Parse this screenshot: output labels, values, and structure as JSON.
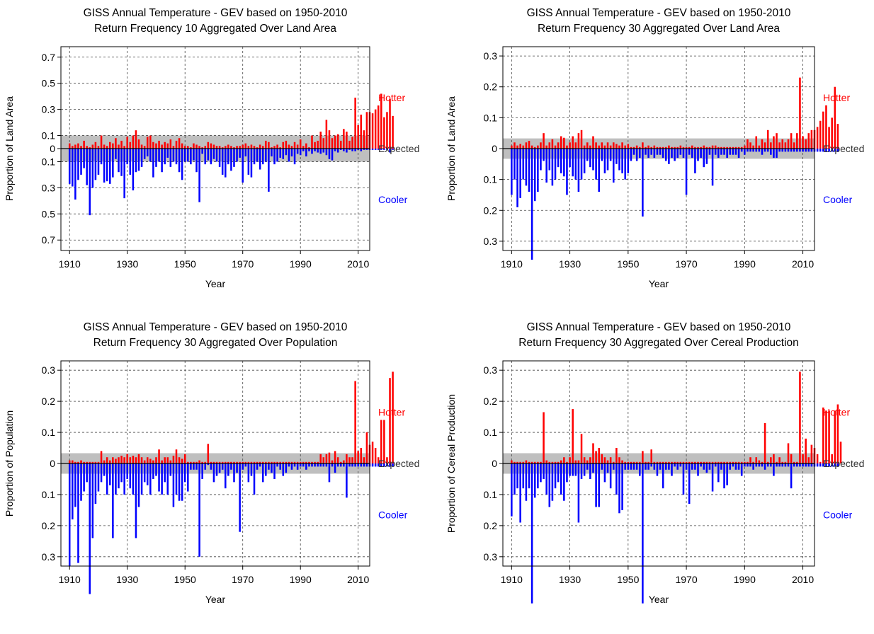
{
  "figure": {
    "colors": {
      "hotter": "#ff0000",
      "cooler": "#0000ff",
      "band": "#bfbfbf",
      "axis": "#000000",
      "grid": "#444444"
    }
  },
  "chart_data": [
    {
      "type": "bar",
      "title": "GISS Annual Temperature - GEV based on 1950-2010",
      "subtitle": "Return Frequency 10 Aggregated Over  Land Area",
      "xlabel": "Year",
      "ylabel": "Proportion of Land Area",
      "xlim": [
        1907,
        2014
      ],
      "ylim": [
        -0.78,
        0.78
      ],
      "x_ticks": [
        1910,
        1930,
        1950,
        1970,
        1990,
        2010
      ],
      "y_ticks": [
        0.7,
        0.5,
        0.3,
        0.1,
        0,
        -0.1,
        -0.3,
        -0.5,
        -0.7
      ],
      "y_tick_labels": [
        "0.7",
        "0.5",
        "0.3",
        "0.1",
        "0",
        "0.1",
        "0.3",
        "0.5",
        "0.7"
      ],
      "expected_band": 0.1,
      "labels": {
        "hotter": "Hotter",
        "expected": "Expected",
        "cooler": "Cooler"
      },
      "years_start": 1910,
      "hotter": [
        0.04,
        0.02,
        0.03,
        0.04,
        0.02,
        0.06,
        0.02,
        0.01,
        0.03,
        0.05,
        0.02,
        0.1,
        0.03,
        0.02,
        0.05,
        0.04,
        0.08,
        0.03,
        0.06,
        0.02,
        0.09,
        0.05,
        0.1,
        0.14,
        0.07,
        0.03,
        0.02,
        0.09,
        0.1,
        0.05,
        0.04,
        0.06,
        0.03,
        0.05,
        0.04,
        0.07,
        0.02,
        0.06,
        0.08,
        0.04,
        0.02,
        0.02,
        0.01,
        0.04,
        0.03,
        0.02,
        0.01,
        0.02,
        0.05,
        0.04,
        0.03,
        0.02,
        0.02,
        0.01,
        0.02,
        0.03,
        0.02,
        0.01,
        0.02,
        0.02,
        0.03,
        0.04,
        0.02,
        0.03,
        0.02,
        0.01,
        0.03,
        0.02,
        0.06,
        0.05,
        0.01,
        0.02,
        0.03,
        0.01,
        0.05,
        0.06,
        0.03,
        0.02,
        0.05,
        0.03,
        0.07,
        0.02,
        0.04,
        0.01,
        0.1,
        0.05,
        0.06,
        0.13,
        0.08,
        0.22,
        0.14,
        0.08,
        0.1,
        0.11,
        0.06,
        0.15,
        0.13,
        0.06,
        0.09,
        0.39,
        0.18,
        0.26,
        0.14,
        0.28,
        0.28,
        0.27,
        0.3,
        0.33,
        0.42,
        0.24,
        0.28,
        0.38,
        0.25
      ],
      "cooler": [
        0.27,
        0.29,
        0.39,
        0.24,
        0.2,
        0.15,
        0.28,
        0.51,
        0.3,
        0.24,
        0.2,
        0.12,
        0.26,
        0.25,
        0.27,
        0.22,
        0.08,
        0.18,
        0.21,
        0.38,
        0.12,
        0.2,
        0.32,
        0.18,
        0.17,
        0.14,
        0.08,
        0.06,
        0.1,
        0.22,
        0.14,
        0.1,
        0.18,
        0.12,
        0.07,
        0.14,
        0.1,
        0.12,
        0.18,
        0.24,
        0.1,
        0.1,
        0.12,
        0.09,
        0.18,
        0.41,
        0.04,
        0.12,
        0.09,
        0.12,
        0.08,
        0.1,
        0.14,
        0.2,
        0.22,
        0.12,
        0.17,
        0.14,
        0.1,
        0.07,
        0.26,
        0.06,
        0.2,
        0.22,
        0.12,
        0.1,
        0.16,
        0.12,
        0.1,
        0.33,
        0.06,
        0.12,
        0.1,
        0.07,
        0.08,
        0.05,
        0.1,
        0.06,
        0.12,
        0.04,
        0.05,
        0.02,
        0.06,
        0.02,
        0.04,
        0.02,
        0.03,
        0.04,
        0.03,
        0.05,
        0.08,
        0.09,
        0.02,
        0.03,
        0.01,
        0.02,
        0.03,
        0.01,
        0.02,
        0.02,
        0.01,
        0.02,
        0.01,
        0.01,
        0.01,
        0.01,
        0.01,
        0.01,
        0.01,
        0.01,
        0.01,
        0.03,
        0.01
      ]
    },
    {
      "type": "bar",
      "title": "GISS Annual Temperature - GEV based on 1950-2010",
      "subtitle": "Return Frequency 30 Aggregated Over  Land Area",
      "xlabel": "Year",
      "ylabel": "Proportion of Land Area",
      "xlim": [
        1907,
        2014
      ],
      "ylim": [
        -0.33,
        0.33
      ],
      "x_ticks": [
        1910,
        1930,
        1950,
        1970,
        1990,
        2010
      ],
      "y_ticks": [
        0.3,
        0.2,
        0.1,
        0,
        -0.1,
        -0.2,
        -0.3
      ],
      "y_tick_labels": [
        "0.3",
        "0.2",
        "0.1",
        "0",
        "0.1",
        "0.2",
        "0.3"
      ],
      "expected_band": 0.033,
      "labels": {
        "hotter": "Hotter",
        "expected": "Expected",
        "cooler": "Cooler"
      },
      "years_start": 1910,
      "hotter": [
        0.01,
        0.02,
        0.01,
        0.015,
        0.01,
        0.02,
        0.025,
        0.01,
        0.005,
        0.01,
        0.02,
        0.05,
        0.01,
        0.02,
        0.03,
        0.01,
        0.02,
        0.04,
        0.035,
        0.01,
        0.02,
        0.04,
        0.02,
        0.05,
        0.06,
        0.01,
        0.02,
        0.01,
        0.04,
        0.02,
        0.01,
        0.02,
        0.01,
        0.02,
        0.01,
        0.02,
        0.015,
        0.01,
        0.02,
        0.01,
        0.015,
        0.005,
        0.005,
        0.01,
        0.005,
        0.02,
        0.005,
        0.01,
        0.005,
        0.01,
        0.005,
        0.005,
        0.005,
        0.005,
        0.01,
        0.005,
        0.005,
        0.005,
        0.01,
        0.005,
        0.005,
        0.005,
        0.01,
        0.005,
        0.005,
        0.005,
        0.01,
        0.005,
        0.005,
        0.01,
        0.01,
        0.005,
        0.005,
        0.005,
        0.005,
        0.005,
        0.005,
        0.005,
        0.005,
        0.005,
        0.01,
        0.03,
        0.02,
        0.01,
        0.04,
        0.01,
        0.03,
        0.02,
        0.06,
        0.02,
        0.04,
        0.05,
        0.02,
        0.03,
        0.02,
        0.03,
        0.05,
        0.02,
        0.05,
        0.23,
        0.04,
        0.03,
        0.05,
        0.06,
        0.06,
        0.07,
        0.09,
        0.12,
        0.14,
        0.07,
        0.1,
        0.2,
        0.08
      ],
      "cooler": [
        0.15,
        0.1,
        0.19,
        0.16,
        0.1,
        0.12,
        0.14,
        0.36,
        0.17,
        0.14,
        0.07,
        0.04,
        0.11,
        0.07,
        0.12,
        0.1,
        0.06,
        0.08,
        0.09,
        0.15,
        0.06,
        0.09,
        0.1,
        0.14,
        0.1,
        0.08,
        0.04,
        0.06,
        0.07,
        0.1,
        0.14,
        0.04,
        0.08,
        0.07,
        0.04,
        0.11,
        0.05,
        0.07,
        0.08,
        0.1,
        0.08,
        0.04,
        0.02,
        0.04,
        0.03,
        0.22,
        0.02,
        0.03,
        0.02,
        0.03,
        0.02,
        0.02,
        0.03,
        0.04,
        0.05,
        0.03,
        0.04,
        0.03,
        0.02,
        0.03,
        0.15,
        0.02,
        0.03,
        0.08,
        0.04,
        0.03,
        0.06,
        0.05,
        0.02,
        0.12,
        0.02,
        0.03,
        0.02,
        0.02,
        0.03,
        0.02,
        0.02,
        0.02,
        0.03,
        0.01,
        0.02,
        0.01,
        0.01,
        0.01,
        0.01,
        0.01,
        0.02,
        0.01,
        0.01,
        0.02,
        0.03,
        0.03,
        0.01,
        0.01,
        0.01,
        0.01,
        0.01,
        0.01,
        0.01,
        0.01,
        0.01,
        0.01,
        0.01,
        0.01,
        0.01,
        0.01,
        0.01,
        0.01,
        0.01,
        0.01,
        0.01,
        0.01,
        0.01
      ]
    },
    {
      "type": "bar",
      "title": "GISS Annual Temperature - GEV based on 1950-2010",
      "subtitle": "Return Frequency 30 Aggregated Over  Population",
      "xlabel": "Year",
      "ylabel": "Proportion of Population",
      "xlim": [
        1907,
        2014
      ],
      "ylim": [
        -0.33,
        0.33
      ],
      "x_ticks": [
        1910,
        1930,
        1950,
        1970,
        1990,
        2010
      ],
      "y_ticks": [
        0.3,
        0.2,
        0.1,
        0,
        -0.1,
        -0.2,
        -0.3
      ],
      "y_tick_labels": [
        "0.3",
        "0.2",
        "0.1",
        "0",
        "0.1",
        "0.2",
        "0.3"
      ],
      "expected_band": 0.033,
      "labels": {
        "hotter": "Hotter",
        "expected": "Expected",
        "cooler": "Cooler"
      },
      "years_start": 1910,
      "hotter": [
        0.01,
        0.01,
        0.005,
        0.005,
        0.01,
        0.005,
        0.005,
        0.005,
        0.005,
        0.005,
        0.005,
        0.04,
        0.01,
        0.02,
        0.01,
        0.02,
        0.015,
        0.02,
        0.025,
        0.02,
        0.03,
        0.02,
        0.025,
        0.02,
        0.03,
        0.02,
        0.01,
        0.02,
        0.015,
        0.01,
        0.02,
        0.045,
        0.01,
        0.02,
        0.02,
        0.01,
        0.025,
        0.045,
        0.02,
        0.015,
        0.03,
        0.005,
        0.005,
        0.005,
        0.005,
        0.01,
        0.005,
        0.005,
        0.063,
        0.005,
        0.005,
        0.005,
        0.005,
        0.005,
        0.005,
        0.005,
        0.005,
        0.005,
        0.005,
        0.005,
        0.005,
        0.005,
        0.005,
        0.005,
        0.005,
        0.005,
        0.005,
        0.005,
        0.005,
        0.005,
        0.005,
        0.005,
        0.005,
        0.005,
        0.005,
        0.005,
        0.005,
        0.005,
        0.005,
        0.005,
        0.005,
        0.005,
        0.005,
        0.005,
        0.005,
        0.005,
        0.005,
        0.03,
        0.02,
        0.03,
        0.035,
        0.01,
        0.04,
        0.02,
        0.005,
        0.01,
        0.03,
        0.02,
        0.02,
        0.265,
        0.04,
        0.05,
        0.02,
        0.1,
        0.06,
        0.07,
        0.05,
        0.02,
        0.14,
        0.14,
        0.02,
        0.275,
        0.295
      ],
      "cooler": [
        0.33,
        0.18,
        0.14,
        0.32,
        0.12,
        0.09,
        0.06,
        0.42,
        0.24,
        0.13,
        0.09,
        0.06,
        0.04,
        0.1,
        0.07,
        0.24,
        0.1,
        0.08,
        0.06,
        0.1,
        0.05,
        0.08,
        0.1,
        0.24,
        0.14,
        0.1,
        0.06,
        0.07,
        0.1,
        0.05,
        0.04,
        0.09,
        0.1,
        0.06,
        0.1,
        0.04,
        0.14,
        0.1,
        0.12,
        0.12,
        0.06,
        0.09,
        0.02,
        0.02,
        0.02,
        0.3,
        0.05,
        0.02,
        0.005,
        0.02,
        0.06,
        0.04,
        0.03,
        0.02,
        0.08,
        0.04,
        0.02,
        0.06,
        0.03,
        0.22,
        0.02,
        0.01,
        0.06,
        0.04,
        0.1,
        0.02,
        0.01,
        0.06,
        0.04,
        0.02,
        0.03,
        0.05,
        0.01,
        0.02,
        0.04,
        0.03,
        0.01,
        0.02,
        0.01,
        0.02,
        0.01,
        0.01,
        0.02,
        0.01,
        0.01,
        0.01,
        0.01,
        0.01,
        0.01,
        0.01,
        0.06,
        0.01,
        0.03,
        0.01,
        0.01,
        0.01,
        0.11,
        0.01,
        0.01,
        0.01,
        0.01,
        0.01,
        0.01,
        0.01,
        0.01,
        0.01,
        0.01,
        0.01,
        0.01,
        0.01,
        0.01,
        0.01,
        0.01
      ]
    },
    {
      "type": "bar",
      "title": "GISS Annual Temperature - GEV based on 1950-2010",
      "subtitle": "Return Frequency 30 Aggregated Over  Cereal Production",
      "xlabel": "Year",
      "ylabel": "Proportion of Cereal Production",
      "xlim": [
        1907,
        2014
      ],
      "ylim": [
        -0.33,
        0.33
      ],
      "x_ticks": [
        1910,
        1930,
        1950,
        1970,
        1990,
        2010
      ],
      "y_ticks": [
        0.3,
        0.2,
        0.1,
        0,
        -0.1,
        -0.2,
        -0.3
      ],
      "y_tick_labels": [
        "0.3",
        "0.2",
        "0.1",
        "0",
        "0.1",
        "0.2",
        "0.3"
      ],
      "expected_band": 0.033,
      "labels": {
        "hotter": "Hotter",
        "expected": "Expected",
        "cooler": "Cooler"
      },
      "years_start": 1910,
      "hotter": [
        0.01,
        0.005,
        0.005,
        0.005,
        0.005,
        0.01,
        0.005,
        0.005,
        0.005,
        0.005,
        0.005,
        0.165,
        0.01,
        0.005,
        0.005,
        0.005,
        0.005,
        0.01,
        0.02,
        0.005,
        0.02,
        0.175,
        0.01,
        0.01,
        0.095,
        0.02,
        0.01,
        0.02,
        0.065,
        0.04,
        0.05,
        0.03,
        0.02,
        0.01,
        0.02,
        0.005,
        0.05,
        0.02,
        0.01,
        0.005,
        0.005,
        0.005,
        0.005,
        0.005,
        0.005,
        0.04,
        0.005,
        0.005,
        0.045,
        0.005,
        0.005,
        0.005,
        0.005,
        0.005,
        0.005,
        0.005,
        0.005,
        0.005,
        0.005,
        0.005,
        0.005,
        0.005,
        0.005,
        0.005,
        0.005,
        0.005,
        0.005,
        0.005,
        0.005,
        0.005,
        0.005,
        0.005,
        0.005,
        0.005,
        0.005,
        0.005,
        0.005,
        0.005,
        0.005,
        0.005,
        0.005,
        0.005,
        0.02,
        0.005,
        0.02,
        0.01,
        0.005,
        0.13,
        0.005,
        0.02,
        0.03,
        0.005,
        0.02,
        0.005,
        0.005,
        0.065,
        0.03,
        0.005,
        0.005,
        0.295,
        0.03,
        0.08,
        0.02,
        0.06,
        0.05,
        0.03,
        0.005,
        0.18,
        0.17,
        0.17,
        0.03,
        0.17,
        0.19,
        0.07
      ],
      "cooler": [
        0.17,
        0.1,
        0.08,
        0.19,
        0.08,
        0.12,
        0.08,
        0.45,
        0.11,
        0.08,
        0.06,
        0.05,
        0.1,
        0.14,
        0.12,
        0.08,
        0.06,
        0.1,
        0.12,
        0.06,
        0.04,
        0.04,
        0.04,
        0.19,
        0.05,
        0.04,
        0.02,
        0.05,
        0.03,
        0.14,
        0.14,
        0.02,
        0.06,
        0.03,
        0.08,
        0.02,
        0.1,
        0.16,
        0.15,
        0.02,
        0.02,
        0.02,
        0.02,
        0.02,
        0.04,
        0.45,
        0.02,
        0.02,
        0.01,
        0.02,
        0.04,
        0.02,
        0.08,
        0.02,
        0.02,
        0.04,
        0.01,
        0.02,
        0.01,
        0.1,
        0.02,
        0.13,
        0.02,
        0.02,
        0.04,
        0.01,
        0.02,
        0.03,
        0.02,
        0.09,
        0.01,
        0.06,
        0.02,
        0.08,
        0.07,
        0.02,
        0.01,
        0.02,
        0.02,
        0.04,
        0.01,
        0.01,
        0.01,
        0.02,
        0.01,
        0.01,
        0.01,
        0.02,
        0.01,
        0.01,
        0.04,
        0.01,
        0.01,
        0.01,
        0.01,
        0.01,
        0.08,
        0.01,
        0.01,
        0.01,
        0.01,
        0.01,
        0.01,
        0.01,
        0.01,
        0.01,
        0.01,
        0.01,
        0.01,
        0.01,
        0.01,
        0.01,
        0.01
      ]
    }
  ]
}
